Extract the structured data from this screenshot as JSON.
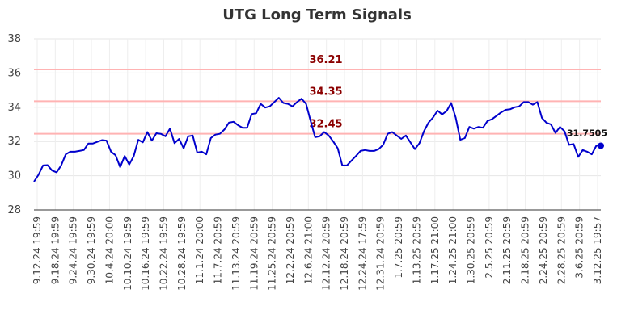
{
  "chart_data": {
    "type": "line",
    "title": "UTG Long Term Signals",
    "xlabel": "",
    "ylabel": "",
    "ylim": [
      28,
      38
    ],
    "yticks": [
      28,
      30,
      32,
      34,
      36,
      38
    ],
    "grid": true,
    "x_tick_labels": [
      "9.12.24 19:59",
      "9.18.24 19:59",
      "9.24.24 19:59",
      "9.30.24 19:59",
      "10.4.24 20:00",
      "10.10.24 19:59",
      "10.16.24 19:59",
      "10.22.24 19:59",
      "10.28.24 19:59",
      "11.1.24 20:00",
      "11.7.24 20:59",
      "11.13.24 20:59",
      "11.19.24 20:59",
      "11.25.24 20:59",
      "12.2.24 20:59",
      "12.6.24 21:00",
      "12.12.24 20:59",
      "12.18.24 20:59",
      "12.24.24 17:59",
      "12.31.24 20:59",
      "1.7.25 20:59",
      "1.13.25 20:59",
      "1.17.25 21:00",
      "1.24.25 21:00",
      "1.30.25 20:59",
      "2.5.25 20:59",
      "2.11.25 20:59",
      "2.18.25 20:59",
      "2.24.25 20:59",
      "2.28.25 20:59",
      "3.6.25 20:59",
      "3.12.25 19:57"
    ],
    "series": [
      {
        "color": "#0000cc",
        "values": [
          29.65,
          30.05,
          30.6,
          30.62,
          30.3,
          30.2,
          30.6,
          31.25,
          31.4,
          31.4,
          31.45,
          31.5,
          31.88,
          31.88,
          31.98,
          32.08,
          32.05,
          31.4,
          31.2,
          30.5,
          31.15,
          30.65,
          31.15,
          32.1,
          31.95,
          32.55,
          32.05,
          32.48,
          32.45,
          32.3,
          32.75,
          31.9,
          32.15,
          31.6,
          32.3,
          32.35,
          31.35,
          31.4,
          31.25,
          32.2,
          32.4,
          32.45,
          32.7,
          33.1,
          33.15,
          32.95,
          32.8,
          32.8,
          33.6,
          33.65,
          34.2,
          33.98,
          34.05,
          34.3,
          34.55,
          34.25,
          34.2,
          34.05,
          34.3,
          34.5,
          34.2,
          33.2,
          32.25,
          32.3,
          32.55,
          32.35,
          32.0,
          31.6,
          30.6,
          30.6,
          30.88,
          31.15,
          31.45,
          31.5,
          31.45,
          31.45,
          31.55,
          31.8,
          32.45,
          32.55,
          32.35,
          32.15,
          32.35,
          31.95,
          31.55,
          31.9,
          32.6,
          33.1,
          33.4,
          33.8,
          33.58,
          33.78,
          34.25,
          33.4,
          32.1,
          32.2,
          32.85,
          32.75,
          32.85,
          32.8,
          33.2,
          33.3,
          33.5,
          33.7,
          33.85,
          33.88,
          34.0,
          34.05,
          34.3,
          34.3,
          34.15,
          34.3,
          33.38,
          33.1,
          33.0,
          32.5,
          32.85,
          32.6,
          31.8,
          31.85,
          31.1,
          31.5,
          31.4,
          31.25,
          31.75,
          31.75
        ]
      }
    ],
    "reference_lines": [
      {
        "value": 36.21,
        "label": "36.21",
        "color": "#ffb3b3",
        "label_color": "#8b0000"
      },
      {
        "value": 34.35,
        "label": "34.35",
        "color": "#ffb3b3",
        "label_color": "#8b0000"
      },
      {
        "value": 32.45,
        "label": "32.45",
        "color": "#ffb3b3",
        "label_color": "#8b0000"
      }
    ],
    "last_value_label": "31.7505",
    "last_point_color": "#0000cc"
  }
}
